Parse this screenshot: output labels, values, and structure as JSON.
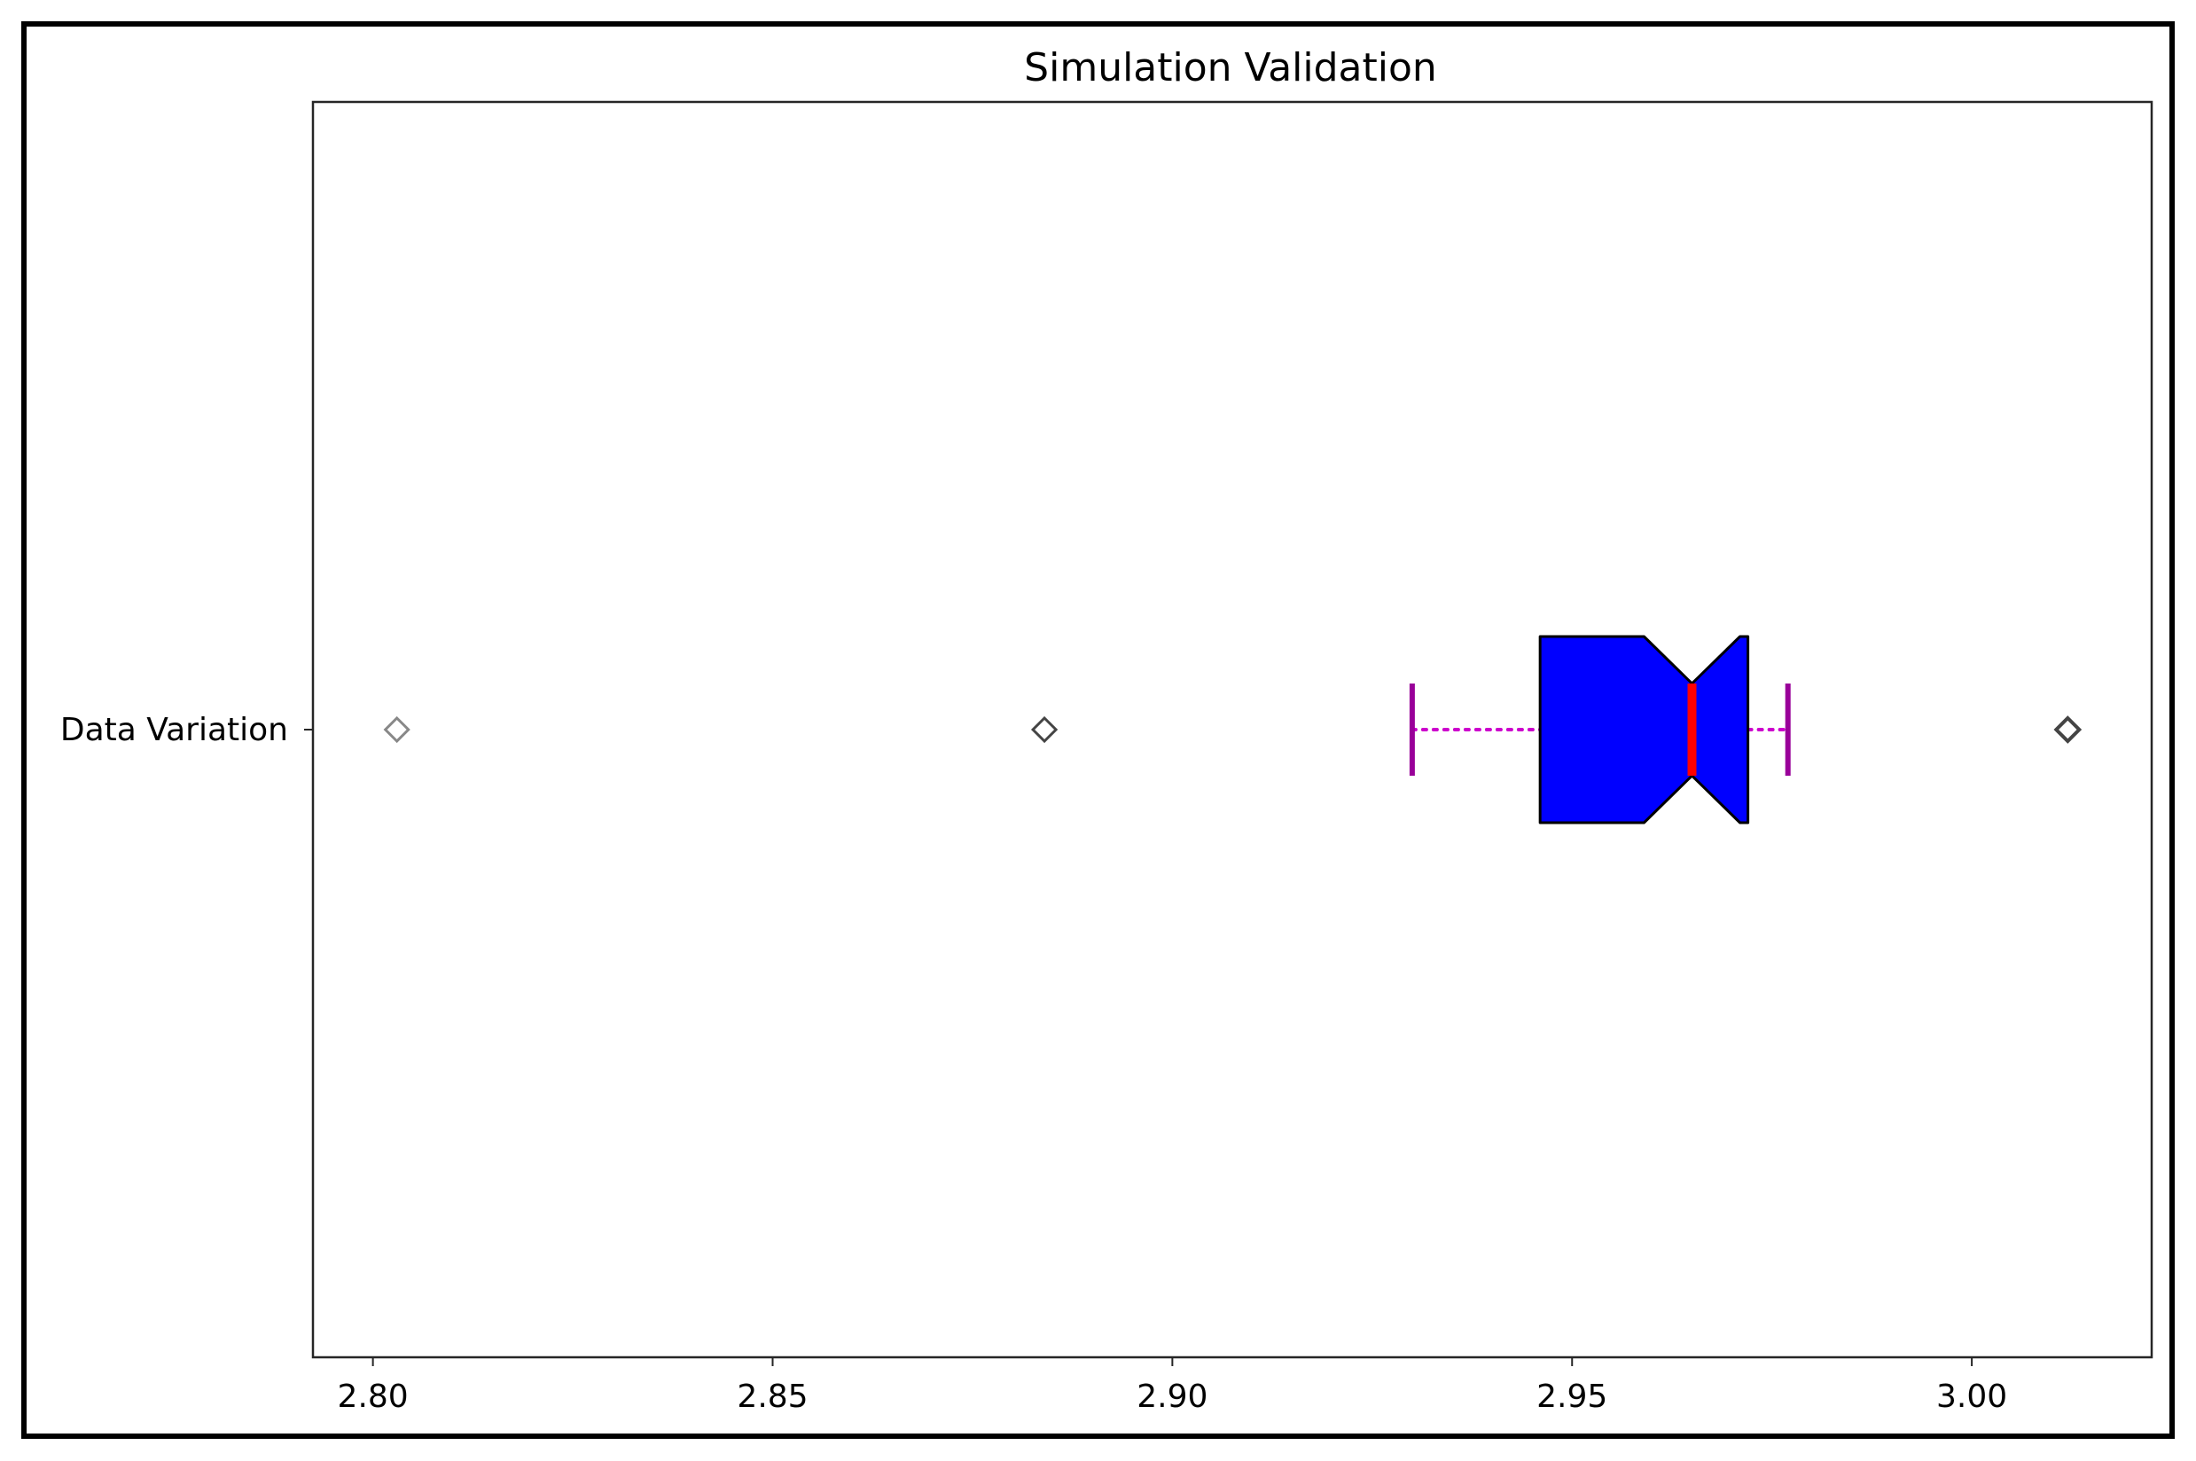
{
  "chart_data": {
    "type": "boxplot",
    "orientation": "horizontal",
    "title": "Simulation Validation",
    "xlabel": "",
    "ylabel": "",
    "xlim": [
      2.7925,
      3.0225
    ],
    "x_ticks": [
      {
        "value": 2.8,
        "label": "2.80"
      },
      {
        "value": 2.85,
        "label": "2.85"
      },
      {
        "value": 2.9,
        "label": "2.90"
      },
      {
        "value": 2.95,
        "label": "2.95"
      },
      {
        "value": 3.0,
        "label": "3.00"
      }
    ],
    "grid": false,
    "notched": true,
    "categories": [
      "Data Variation"
    ],
    "boxes": [
      {
        "category": "Data Variation",
        "whisker_low": 2.93,
        "q1": 2.946,
        "notch_low": 2.959,
        "median": 2.965,
        "notch_high": 2.971,
        "q3": 2.972,
        "whisker_high": 2.977,
        "outliers": [
          2.803,
          2.884,
          3.012
        ]
      }
    ],
    "colors": {
      "box_fill": "#0000ff",
      "box_edge": "#000000",
      "median": "#ff0000",
      "whisker": "#cc00cc",
      "cap": "#990099",
      "outlier": "#444444",
      "outlier_faint": "#888888"
    }
  }
}
